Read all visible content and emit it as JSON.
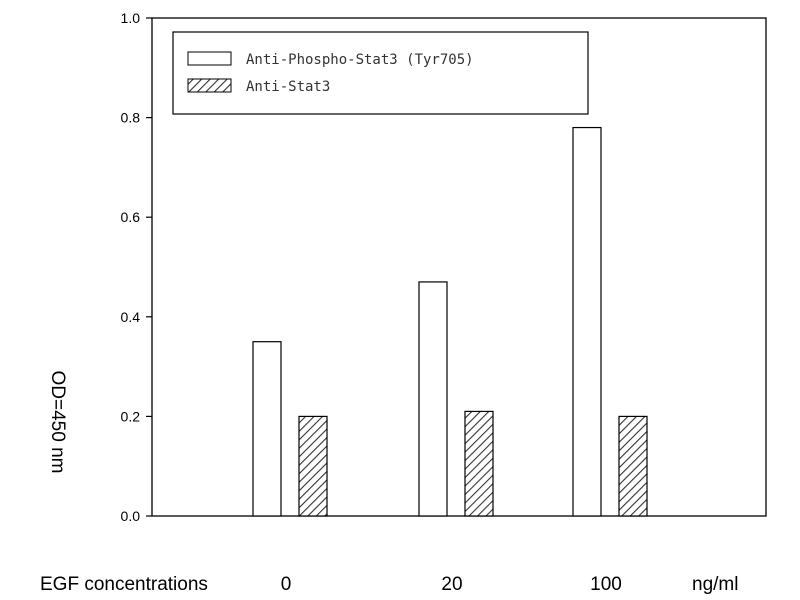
{
  "chart_data": {
    "type": "bar",
    "categories": [
      "0",
      "20",
      "100"
    ],
    "series": [
      {
        "name": "Anti-Phospho-Stat3 (Tyr705)",
        "values": [
          0.35,
          0.47,
          0.78
        ],
        "fill": "white"
      },
      {
        "name": "Anti-Stat3",
        "values": [
          0.2,
          0.21,
          0.2
        ],
        "fill": "hatched"
      }
    ],
    "ylabel": "OD=450 nm",
    "xlabel": "EGF concentrations",
    "x_unit": "ng/ml",
    "ylim": [
      0,
      1.0
    ],
    "yticks": [
      "0.0",
      "0.2",
      "0.4",
      "0.6",
      "0.8",
      "1.0"
    ],
    "legend_position": "top-left",
    "grid": false,
    "colors": {
      "bar_stroke": "#000000",
      "bar_fill": "#ffffff",
      "hatch": "#333333"
    }
  }
}
